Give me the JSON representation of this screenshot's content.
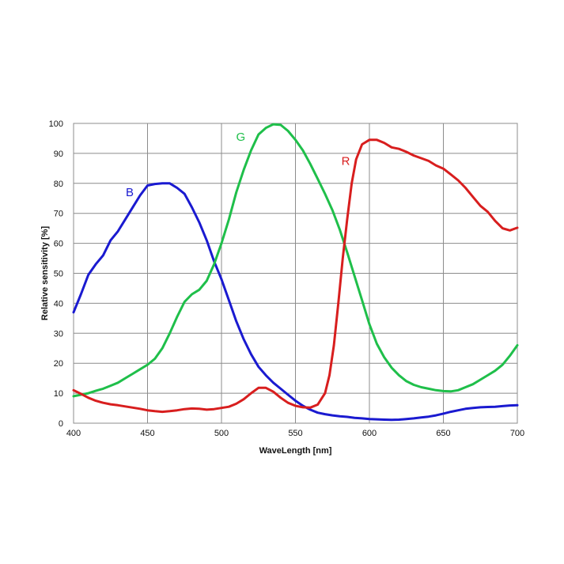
{
  "chart_data": {
    "type": "line",
    "title": "",
    "xlabel": "WaveLength [nm]",
    "ylabel": "Relative sensitivity [%]",
    "xlim": [
      400,
      700
    ],
    "ylim": [
      0,
      100
    ],
    "x_ticks": [
      400,
      450,
      500,
      550,
      600,
      650,
      700
    ],
    "y_ticks": [
      0,
      10,
      20,
      30,
      40,
      50,
      60,
      70,
      80,
      90,
      100
    ],
    "grid": true,
    "legend": "none",
    "series": [
      {
        "name": "B",
        "color": "#1a1ad0",
        "label_at": [
          438,
          77
        ],
        "points": [
          [
            400,
            37
          ],
          [
            405,
            43
          ],
          [
            410,
            49.5
          ],
          [
            415,
            53
          ],
          [
            420,
            56
          ],
          [
            425,
            61
          ],
          [
            430,
            64
          ],
          [
            435,
            68
          ],
          [
            440,
            72
          ],
          [
            445,
            76
          ],
          [
            450,
            79.3
          ],
          [
            455,
            79.8
          ],
          [
            460,
            80
          ],
          [
            465,
            80
          ],
          [
            470,
            78.5
          ],
          [
            475,
            76.5
          ],
          [
            480,
            72
          ],
          [
            485,
            67
          ],
          [
            490,
            61
          ],
          [
            495,
            54
          ],
          [
            500,
            48
          ],
          [
            505,
            41
          ],
          [
            510,
            34
          ],
          [
            515,
            28
          ],
          [
            520,
            23
          ],
          [
            525,
            18.8
          ],
          [
            530,
            16
          ],
          [
            535,
            13.5
          ],
          [
            540,
            11.5
          ],
          [
            545,
            9.5
          ],
          [
            550,
            7.5
          ],
          [
            555,
            5.8
          ],
          [
            560,
            4.5
          ],
          [
            565,
            3.5
          ],
          [
            570,
            3
          ],
          [
            575,
            2.6
          ],
          [
            580,
            2.3
          ],
          [
            585,
            2.1
          ],
          [
            590,
            1.8
          ],
          [
            595,
            1.6
          ],
          [
            600,
            1.4
          ],
          [
            605,
            1.3
          ],
          [
            610,
            1.2
          ],
          [
            615,
            1.1
          ],
          [
            620,
            1.2
          ],
          [
            625,
            1.4
          ],
          [
            630,
            1.6
          ],
          [
            635,
            1.9
          ],
          [
            640,
            2.2
          ],
          [
            645,
            2.6
          ],
          [
            650,
            3.2
          ],
          [
            655,
            3.8
          ],
          [
            660,
            4.3
          ],
          [
            665,
            4.8
          ],
          [
            670,
            5.1
          ],
          [
            675,
            5.3
          ],
          [
            680,
            5.4
          ],
          [
            685,
            5.5
          ],
          [
            690,
            5.7
          ],
          [
            695,
            5.9
          ],
          [
            700,
            6
          ]
        ]
      },
      {
        "name": "G",
        "color": "#1fbf4a",
        "label_at": [
          513,
          95.5
        ],
        "points": [
          [
            400,
            9
          ],
          [
            405,
            9.5
          ],
          [
            410,
            10
          ],
          [
            415,
            10.8
          ],
          [
            420,
            11.5
          ],
          [
            425,
            12.5
          ],
          [
            430,
            13.5
          ],
          [
            435,
            15
          ],
          [
            440,
            16.5
          ],
          [
            445,
            18
          ],
          [
            450,
            19.5
          ],
          [
            455,
            21.5
          ],
          [
            460,
            25
          ],
          [
            465,
            30
          ],
          [
            470,
            35.5
          ],
          [
            475,
            40.5
          ],
          [
            480,
            43
          ],
          [
            485,
            44.5
          ],
          [
            490,
            47.5
          ],
          [
            495,
            53
          ],
          [
            500,
            60
          ],
          [
            505,
            68
          ],
          [
            510,
            77
          ],
          [
            515,
            84.5
          ],
          [
            520,
            91
          ],
          [
            525,
            96.3
          ],
          [
            530,
            98.5
          ],
          [
            535,
            99.7
          ],
          [
            540,
            99.5
          ],
          [
            545,
            97.5
          ],
          [
            550,
            94.5
          ],
          [
            555,
            91
          ],
          [
            560,
            86.5
          ],
          [
            565,
            81.5
          ],
          [
            570,
            76.5
          ],
          [
            575,
            71
          ],
          [
            580,
            64.5
          ],
          [
            585,
            57
          ],
          [
            590,
            49
          ],
          [
            595,
            41
          ],
          [
            600,
            33
          ],
          [
            605,
            26.5
          ],
          [
            610,
            22
          ],
          [
            615,
            18.5
          ],
          [
            620,
            16
          ],
          [
            625,
            14
          ],
          [
            630,
            12.8
          ],
          [
            635,
            12
          ],
          [
            640,
            11.5
          ],
          [
            645,
            11
          ],
          [
            650,
            10.7
          ],
          [
            655,
            10.6
          ],
          [
            660,
            11
          ],
          [
            665,
            12
          ],
          [
            670,
            13
          ],
          [
            675,
            14.5
          ],
          [
            680,
            16
          ],
          [
            685,
            17.5
          ],
          [
            690,
            19.5
          ],
          [
            695,
            22.5
          ],
          [
            700,
            26
          ]
        ]
      },
      {
        "name": "R",
        "color": "#d81e1e",
        "label_at": [
          584,
          87.5
        ],
        "points": [
          [
            400,
            11
          ],
          [
            405,
            9.8
          ],
          [
            410,
            8.5
          ],
          [
            415,
            7.5
          ],
          [
            420,
            6.8
          ],
          [
            425,
            6.3
          ],
          [
            430,
            6
          ],
          [
            435,
            5.6
          ],
          [
            440,
            5.2
          ],
          [
            445,
            4.8
          ],
          [
            450,
            4.3
          ],
          [
            455,
            4
          ],
          [
            460,
            3.8
          ],
          [
            465,
            4
          ],
          [
            470,
            4.3
          ],
          [
            475,
            4.7
          ],
          [
            480,
            4.9
          ],
          [
            485,
            4.8
          ],
          [
            490,
            4.5
          ],
          [
            495,
            4.7
          ],
          [
            500,
            5.1
          ],
          [
            505,
            5.5
          ],
          [
            510,
            6.5
          ],
          [
            515,
            8
          ],
          [
            520,
            10
          ],
          [
            525,
            11.8
          ],
          [
            530,
            11.8
          ],
          [
            535,
            10.5
          ],
          [
            540,
            8.5
          ],
          [
            545,
            6.8
          ],
          [
            550,
            5.8
          ],
          [
            555,
            5.3
          ],
          [
            560,
            5.2
          ],
          [
            565,
            6.2
          ],
          [
            570,
            10
          ],
          [
            573,
            16
          ],
          [
            576,
            26
          ],
          [
            579,
            40
          ],
          [
            582,
            55
          ],
          [
            585,
            68
          ],
          [
            588,
            80
          ],
          [
            591,
            88
          ],
          [
            595,
            93
          ],
          [
            600,
            94.5
          ],
          [
            605,
            94.5
          ],
          [
            610,
            93.5
          ],
          [
            615,
            92
          ],
          [
            620,
            91.5
          ],
          [
            625,
            90.5
          ],
          [
            630,
            89.3
          ],
          [
            635,
            88.4
          ],
          [
            640,
            87.5
          ],
          [
            645,
            86
          ],
          [
            650,
            84.9
          ],
          [
            655,
            83
          ],
          [
            660,
            81
          ],
          [
            665,
            78.5
          ],
          [
            670,
            75.5
          ],
          [
            675,
            72.5
          ],
          [
            680,
            70.5
          ],
          [
            685,
            67.5
          ],
          [
            690,
            65
          ],
          [
            695,
            64.3
          ],
          [
            700,
            65.2
          ]
        ]
      }
    ]
  }
}
